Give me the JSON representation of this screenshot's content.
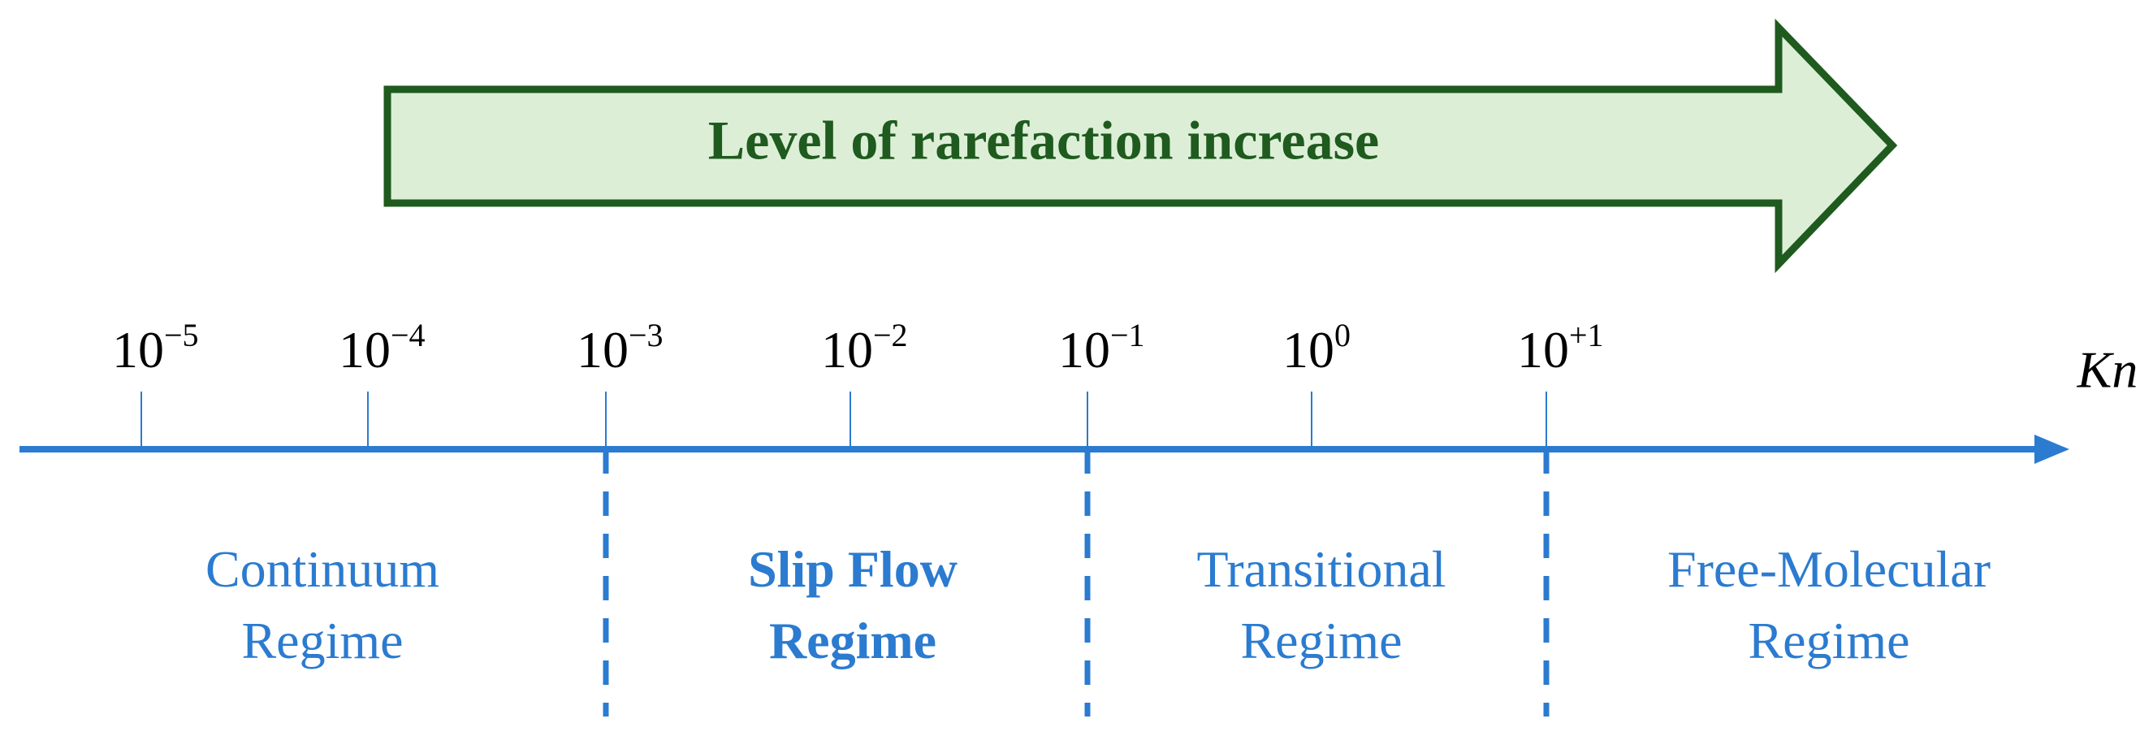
{
  "arrow": {
    "label": "Level of rarefaction increase"
  },
  "axis": {
    "label": "Kn",
    "ticks": [
      {
        "base": "10",
        "exp": "−5"
      },
      {
        "base": "10",
        "exp": "−4"
      },
      {
        "base": "10",
        "exp": "−3"
      },
      {
        "base": "10",
        "exp": "−2"
      },
      {
        "base": "10",
        "exp": "−1"
      },
      {
        "base": "10",
        "exp": "0"
      },
      {
        "base": "10",
        "exp": "+1"
      }
    ]
  },
  "regimes": [
    {
      "lines": [
        "Continuum",
        "Regime"
      ]
    },
    {
      "lines": [
        "Slip Flow",
        "Regime"
      ],
      "bold": true
    },
    {
      "lines": [
        "Transitional",
        "Regime"
      ]
    },
    {
      "lines": [
        "Free-Molecular",
        "Regime"
      ]
    }
  ]
}
